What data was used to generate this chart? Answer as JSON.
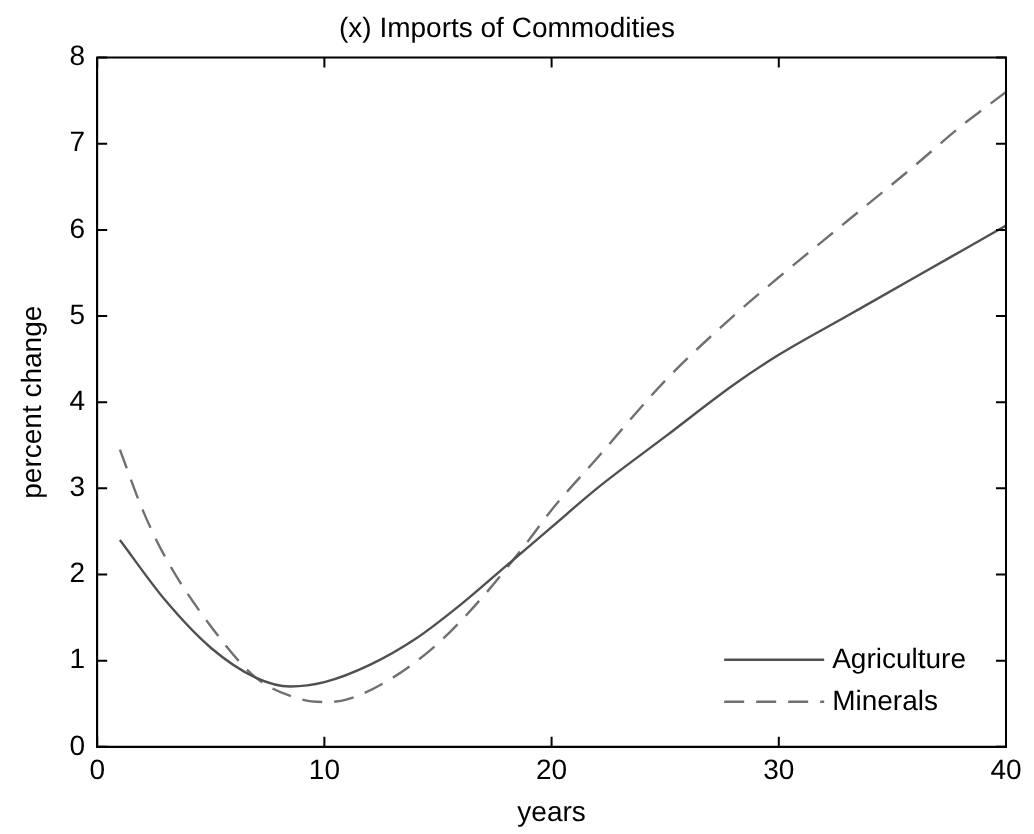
{
  "chart_data": {
    "type": "line",
    "title": "(x) Imports of Commodities",
    "xlabel": "years",
    "ylabel": "percent change",
    "xlim": [
      0,
      40
    ],
    "xticks": [
      0,
      10,
      20,
      30,
      40
    ],
    "ylim": [
      0,
      8
    ],
    "yticks": [
      0,
      1,
      2,
      3,
      4,
      5,
      6,
      7,
      8
    ],
    "grid": false,
    "legend": "bottom right",
    "marker": "none",
    "series": [
      {
        "name": "Agriculture",
        "color": "#505050",
        "line_style": "solid",
        "x": [
          1,
          3,
          5,
          7,
          8.5,
          10,
          12,
          14,
          16,
          18,
          20,
          22,
          25,
          28,
          30,
          33,
          36,
          38,
          40
        ],
        "values": [
          2.4,
          1.7,
          1.15,
          0.8,
          0.7,
          0.75,
          0.95,
          1.25,
          1.65,
          2.1,
          2.55,
          3.0,
          3.6,
          4.2,
          4.55,
          5.0,
          5.45,
          5.75,
          6.05
        ]
      },
      {
        "name": "Minerals",
        "color": "#707070",
        "line_style": "dashed",
        "x": [
          1,
          2,
          3,
          5,
          7,
          9,
          10,
          11,
          13,
          15,
          17,
          19,
          20,
          22,
          25,
          28,
          30,
          33,
          36,
          38,
          40
        ],
        "values": [
          3.45,
          2.75,
          2.2,
          1.4,
          0.8,
          0.55,
          0.52,
          0.55,
          0.8,
          1.2,
          1.75,
          2.4,
          2.75,
          3.35,
          4.25,
          5.0,
          5.45,
          6.1,
          6.75,
          7.2,
          7.6
        ]
      }
    ]
  }
}
